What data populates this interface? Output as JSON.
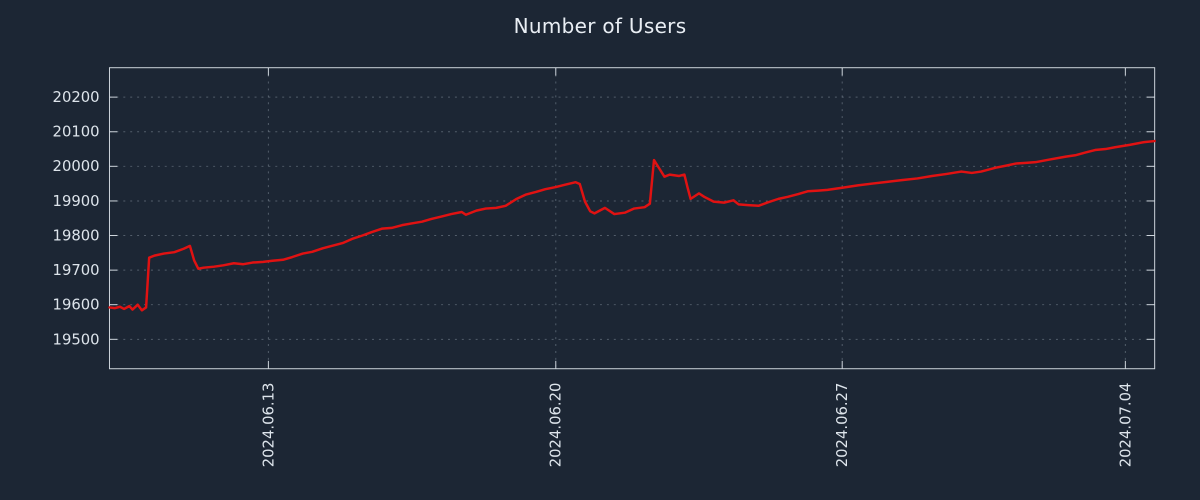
{
  "colors": {
    "background": "#1c2634",
    "text": "#dde4eb",
    "axis_border": "#cfd6dd",
    "grid": "#97a3b0",
    "line": "#e01212"
  },
  "chart_data": {
    "type": "line",
    "title": "Number of Users",
    "xlabel": "",
    "ylabel": "",
    "grid": true,
    "legend": "none",
    "ylim": [
      19415,
      20285
    ],
    "y_ticks": [
      19500,
      19600,
      19700,
      19800,
      19900,
      20000,
      20100,
      20200
    ],
    "x_ticks": [
      {
        "pos": 0.152,
        "label": "2024.06.13"
      },
      {
        "pos": 0.427,
        "label": "2024.06.20"
      },
      {
        "pos": 0.701,
        "label": "2024.06.27"
      },
      {
        "pos": 0.972,
        "label": "2024.07.04"
      }
    ],
    "series": [
      {
        "name": "Number of Users",
        "color": "#e01212",
        "points": [
          [
            0.0,
            19592
          ],
          [
            0.005,
            19590
          ],
          [
            0.01,
            19594
          ],
          [
            0.014,
            19588
          ],
          [
            0.019,
            19596
          ],
          [
            0.022,
            19586
          ],
          [
            0.027,
            19600
          ],
          [
            0.031,
            19584
          ],
          [
            0.035,
            19592
          ],
          [
            0.038,
            19736
          ],
          [
            0.043,
            19742
          ],
          [
            0.052,
            19748
          ],
          [
            0.062,
            19752
          ],
          [
            0.071,
            19762
          ],
          [
            0.077,
            19770
          ],
          [
            0.081,
            19728
          ],
          [
            0.085,
            19704
          ],
          [
            0.09,
            19707
          ],
          [
            0.1,
            19710
          ],
          [
            0.109,
            19714
          ],
          [
            0.119,
            19720
          ],
          [
            0.128,
            19717
          ],
          [
            0.137,
            19722
          ],
          [
            0.147,
            19724
          ],
          [
            0.156,
            19727
          ],
          [
            0.166,
            19730
          ],
          [
            0.175,
            19738
          ],
          [
            0.185,
            19748
          ],
          [
            0.194,
            19753
          ],
          [
            0.204,
            19763
          ],
          [
            0.213,
            19770
          ],
          [
            0.223,
            19778
          ],
          [
            0.232,
            19790
          ],
          [
            0.242,
            19800
          ],
          [
            0.251,
            19810
          ],
          [
            0.261,
            19820
          ],
          [
            0.27,
            19822
          ],
          [
            0.28,
            19830
          ],
          [
            0.289,
            19835
          ],
          [
            0.299,
            19840
          ],
          [
            0.308,
            19848
          ],
          [
            0.318,
            19855
          ],
          [
            0.327,
            19862
          ],
          [
            0.337,
            19868
          ],
          [
            0.341,
            19860
          ],
          [
            0.351,
            19872
          ],
          [
            0.36,
            19878
          ],
          [
            0.37,
            19880
          ],
          [
            0.379,
            19886
          ],
          [
            0.389,
            19905
          ],
          [
            0.398,
            19918
          ],
          [
            0.408,
            19926
          ],
          [
            0.417,
            19934
          ],
          [
            0.427,
            19940
          ],
          [
            0.436,
            19947
          ],
          [
            0.446,
            19954
          ],
          [
            0.45,
            19949
          ],
          [
            0.455,
            19898
          ],
          [
            0.46,
            19870
          ],
          [
            0.464,
            19864
          ],
          [
            0.474,
            19880
          ],
          [
            0.483,
            19862
          ],
          [
            0.493,
            19866
          ],
          [
            0.502,
            19878
          ],
          [
            0.512,
            19882
          ],
          [
            0.517,
            19892
          ],
          [
            0.521,
            20018
          ],
          [
            0.526,
            19994
          ],
          [
            0.531,
            19970
          ],
          [
            0.536,
            19976
          ],
          [
            0.545,
            19972
          ],
          [
            0.55,
            19976
          ],
          [
            0.553,
            19940
          ],
          [
            0.556,
            19906
          ],
          [
            0.564,
            19922
          ],
          [
            0.569,
            19912
          ],
          [
            0.578,
            19898
          ],
          [
            0.588,
            19895
          ],
          [
            0.597,
            19902
          ],
          [
            0.602,
            19890
          ],
          [
            0.611,
            19888
          ],
          [
            0.621,
            19886
          ],
          [
            0.63,
            19896
          ],
          [
            0.64,
            19906
          ],
          [
            0.649,
            19912
          ],
          [
            0.659,
            19920
          ],
          [
            0.668,
            19928
          ],
          [
            0.678,
            19930
          ],
          [
            0.687,
            19932
          ],
          [
            0.701,
            19938
          ],
          [
            0.716,
            19945
          ],
          [
            0.73,
            19950
          ],
          [
            0.744,
            19955
          ],
          [
            0.758,
            19960
          ],
          [
            0.773,
            19965
          ],
          [
            0.787,
            19972
          ],
          [
            0.801,
            19978
          ],
          [
            0.815,
            19985
          ],
          [
            0.825,
            19981
          ],
          [
            0.834,
            19985
          ],
          [
            0.848,
            19996
          ],
          [
            0.858,
            20002
          ],
          [
            0.867,
            20008
          ],
          [
            0.877,
            20010
          ],
          [
            0.886,
            20012
          ],
          [
            0.9,
            20020
          ],
          [
            0.915,
            20028
          ],
          [
            0.924,
            20032
          ],
          [
            0.934,
            20040
          ],
          [
            0.943,
            20047
          ],
          [
            0.953,
            20050
          ],
          [
            0.962,
            20055
          ],
          [
            0.976,
            20062
          ],
          [
            0.99,
            20070
          ],
          [
            1.0,
            20073
          ]
        ]
      }
    ]
  }
}
